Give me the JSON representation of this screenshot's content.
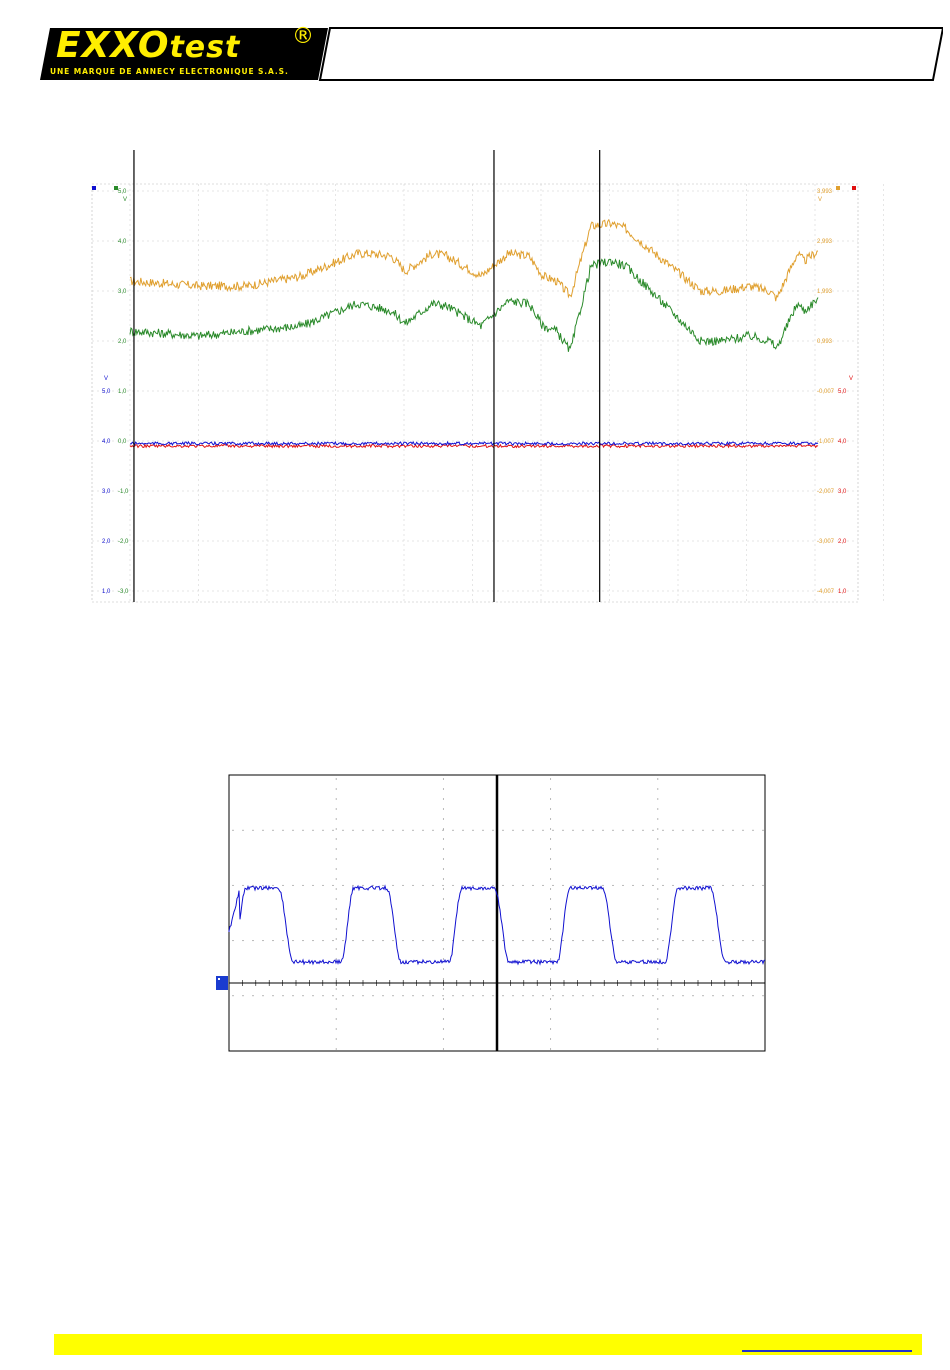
{
  "header": {
    "logo_main": "EXXO",
    "logo_test": "test",
    "logo_registered": "®",
    "logo_tagline": "UNE MARQUE DE ANNECY ELECTRONIQUE S.A.S."
  },
  "colors": {
    "logo_yellow": "#ffee00",
    "orange_trace": "#e0a030",
    "green_trace": "#2a8a2a",
    "red_trace": "#e01010",
    "blue_trace": "#1010d0",
    "footer_yellow": "#ffff00"
  },
  "chart_data": [
    {
      "type": "line",
      "title": "",
      "left_axis_primary_unit": "V",
      "left_axis_primary_ticks": [
        "5,0",
        "4,0",
        "3,0",
        "2,0",
        "1,0",
        "0,0",
        "-1,0",
        "-2,0",
        "-3,0"
      ],
      "left_axis_secondary_unit": "V",
      "left_axis_secondary_ticks": [
        "5,0",
        "4,0",
        "3,0",
        "2,0",
        "1,0"
      ],
      "right_axis_primary_unit": "V",
      "right_axis_primary_ticks": [
        "3,993",
        "2,993",
        "1,993",
        "0,993",
        "-0,007",
        "-1,007",
        "-2,007",
        "-3,007",
        "-4,007"
      ],
      "right_axis_secondary_unit": "V",
      "right_axis_secondary_ticks": [
        "5,0",
        "4,0",
        "3,0",
        "2,0",
        "1,0"
      ],
      "cursor_positions_fraction": [
        0.06,
        0.53,
        0.668
      ],
      "series": [
        {
          "color": "orange",
          "x": [
            0,
            0.1,
            0.17,
            0.25,
            0.33,
            0.35,
            0.38,
            0.4,
            0.44,
            0.46,
            0.51,
            0.55,
            0.58,
            0.6,
            0.62,
            0.64,
            0.67,
            0.7,
            0.72,
            0.75,
            0.83,
            0.86,
            0.9,
            0.93,
            0.94,
            0.97,
            0.98,
            1.0
          ],
          "y": [
            3.2,
            3.1,
            3.1,
            3.3,
            3.75,
            3.75,
            3.7,
            3.4,
            3.75,
            3.7,
            3.3,
            3.75,
            3.7,
            3.3,
            3.2,
            2.9,
            4.3,
            4.35,
            4.25,
            3.9,
            3.0,
            3.0,
            3.1,
            3.0,
            2.85,
            3.75,
            3.6,
            3.8
          ]
        },
        {
          "color": "green",
          "x": [
            0,
            0.1,
            0.17,
            0.25,
            0.33,
            0.35,
            0.38,
            0.4,
            0.44,
            0.46,
            0.51,
            0.55,
            0.58,
            0.6,
            0.62,
            0.64,
            0.67,
            0.7,
            0.72,
            0.75,
            0.83,
            0.86,
            0.9,
            0.93,
            0.94,
            0.97,
            0.98,
            1.0
          ],
          "y": [
            2.2,
            2.1,
            2.2,
            2.3,
            2.75,
            2.7,
            2.6,
            2.35,
            2.75,
            2.7,
            2.3,
            2.8,
            2.75,
            2.3,
            2.2,
            1.8,
            3.5,
            3.6,
            3.5,
            3.1,
            2.0,
            2.0,
            2.1,
            2.0,
            1.85,
            2.75,
            2.6,
            2.85
          ]
        },
        {
          "color": "red",
          "constant": 2.9
        },
        {
          "color": "blue",
          "constant": 2.45
        }
      ]
    },
    {
      "type": "line",
      "title": "",
      "series": [
        {
          "color": "blue",
          "waveform": "periodic rounded square wave",
          "periods_visible": 5,
          "cursor_fraction": 0.5
        }
      ]
    }
  ]
}
